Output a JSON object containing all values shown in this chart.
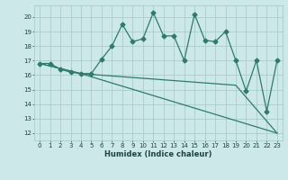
{
  "xlabel": "Humidex (Indice chaleur)",
  "bg_color": "#cce8e8",
  "grid_color": "#aacccc",
  "line_color": "#2e7b6e",
  "ylim": [
    11.5,
    20.8
  ],
  "xlim": [
    -0.5,
    23.5
  ],
  "yticks": [
    12,
    13,
    14,
    15,
    16,
    17,
    18,
    19,
    20
  ],
  "xticks": [
    0,
    1,
    2,
    3,
    4,
    5,
    6,
    7,
    8,
    9,
    10,
    11,
    12,
    13,
    14,
    15,
    16,
    17,
    18,
    19,
    20,
    21,
    22,
    23
  ],
  "line1_x": [
    0,
    1,
    2,
    3,
    4,
    5,
    6,
    7,
    8,
    9,
    10,
    11,
    12,
    13,
    14,
    15,
    16,
    17,
    18,
    19,
    20,
    21,
    22,
    23
  ],
  "line1_y": [
    16.8,
    16.8,
    16.4,
    16.2,
    16.1,
    16.1,
    17.1,
    18.0,
    19.5,
    18.3,
    18.5,
    20.3,
    18.7,
    18.7,
    17.0,
    20.2,
    18.4,
    18.3,
    19.0,
    17.0,
    14.9,
    17.0,
    13.5,
    17.0
  ],
  "line2_x": [
    0,
    4,
    19,
    23
  ],
  "line2_y": [
    16.8,
    16.1,
    15.3,
    12.0
  ],
  "line3_x": [
    0,
    4,
    23
  ],
  "line3_y": [
    16.8,
    16.1,
    12.0
  ],
  "marker_size": 2.5,
  "line_width": 0.9,
  "tick_fontsize": 5.0,
  "xlabel_fontsize": 6.0
}
